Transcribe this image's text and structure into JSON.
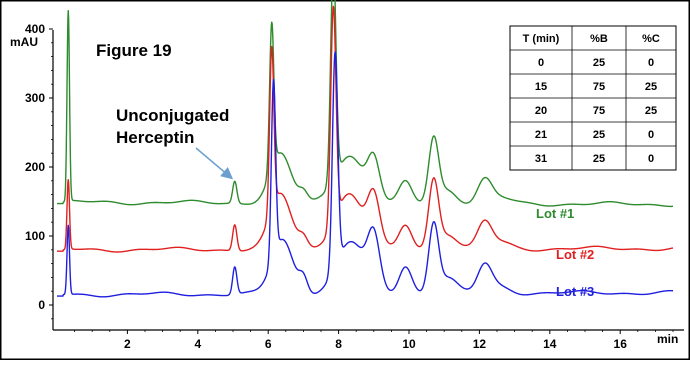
{
  "chart_data": {
    "type": "line",
    "figure_label": "Figure 19",
    "ylabel": "mAU",
    "xlabel": "min",
    "xlim": [
      0,
      17.5
    ],
    "ylim": [
      -30,
      470
    ],
    "x_ticks": [
      2,
      4,
      6,
      8,
      10,
      12,
      14,
      16
    ],
    "y_ticks": [
      0,
      100,
      200,
      300,
      400
    ],
    "annotation": {
      "lines": [
        "Unconjugated",
        "Herceptin"
      ],
      "arrow_target": {
        "x": 5.05,
        "y": 182
      }
    },
    "series": [
      {
        "name": "Lot #1",
        "color": "#2e8b2e",
        "baseline": 149,
        "baseline_end": 146,
        "peaks": [
          {
            "x": 0.32,
            "h": 275,
            "w": 0.035
          },
          {
            "x": 5.05,
            "h": 32,
            "w": 0.06
          },
          {
            "x": 6.1,
            "h": 211,
            "w": 0.06
          },
          {
            "x": 6.35,
            "h": 70,
            "w": 0.3
          },
          {
            "x": 7.0,
            "h": 13,
            "w": 0.12
          },
          {
            "x": 7.85,
            "h": 315,
            "w": 0.075
          },
          {
            "x": 8.3,
            "h": 70,
            "w": 0.4
          },
          {
            "x": 9.0,
            "h": 58,
            "w": 0.17
          },
          {
            "x": 9.9,
            "h": 30,
            "w": 0.18
          },
          {
            "x": 10.7,
            "h": 93,
            "w": 0.14
          },
          {
            "x": 11.1,
            "h": 20,
            "w": 0.25
          },
          {
            "x": 12.15,
            "h": 33,
            "w": 0.2
          },
          {
            "x": 12.6,
            "h": 8,
            "w": 0.3
          }
        ]
      },
      {
        "name": "Lot #2",
        "color": "#e02020",
        "baseline": 80,
        "baseline_end": 82,
        "peaks": [
          {
            "x": 0.32,
            "h": 100,
            "w": 0.035
          },
          {
            "x": 5.05,
            "h": 38,
            "w": 0.06
          },
          {
            "x": 6.1,
            "h": 235,
            "w": 0.06
          },
          {
            "x": 6.35,
            "h": 80,
            "w": 0.3
          },
          {
            "x": 7.0,
            "h": 14,
            "w": 0.12
          },
          {
            "x": 7.85,
            "h": 312,
            "w": 0.075
          },
          {
            "x": 8.3,
            "h": 80,
            "w": 0.4
          },
          {
            "x": 9.0,
            "h": 68,
            "w": 0.17
          },
          {
            "x": 9.9,
            "h": 35,
            "w": 0.18
          },
          {
            "x": 10.7,
            "h": 98,
            "w": 0.14
          },
          {
            "x": 11.1,
            "h": 22,
            "w": 0.25
          },
          {
            "x": 12.15,
            "h": 37,
            "w": 0.2
          },
          {
            "x": 12.6,
            "h": 9,
            "w": 0.3
          }
        ]
      },
      {
        "name": "Lot #3",
        "color": "#1f1fe0",
        "baseline": 15,
        "baseline_end": 18,
        "peaks": [
          {
            "x": 0.32,
            "h": 100,
            "w": 0.035
          },
          {
            "x": 5.05,
            "h": 40,
            "w": 0.06
          },
          {
            "x": 6.15,
            "h": 255,
            "w": 0.06
          },
          {
            "x": 6.4,
            "h": 78,
            "w": 0.3
          },
          {
            "x": 7.0,
            "h": 22,
            "w": 0.12
          },
          {
            "x": 7.9,
            "h": 310,
            "w": 0.075
          },
          {
            "x": 8.35,
            "h": 75,
            "w": 0.4
          },
          {
            "x": 9.0,
            "h": 72,
            "w": 0.17
          },
          {
            "x": 9.9,
            "h": 40,
            "w": 0.18
          },
          {
            "x": 10.7,
            "h": 100,
            "w": 0.14
          },
          {
            "x": 11.1,
            "h": 22,
            "w": 0.25
          },
          {
            "x": 12.15,
            "h": 40,
            "w": 0.2
          },
          {
            "x": 12.6,
            "h": 9,
            "w": 0.3
          }
        ]
      }
    ],
    "gradient_table": {
      "headers": [
        "T (min)",
        "%B",
        "%C"
      ],
      "rows": [
        [
          "0",
          "25",
          "0"
        ],
        [
          "15",
          "75",
          "25"
        ],
        [
          "20",
          "75",
          "25"
        ],
        [
          "21",
          "25",
          "0"
        ],
        [
          "31",
          "25",
          "0"
        ]
      ]
    }
  }
}
